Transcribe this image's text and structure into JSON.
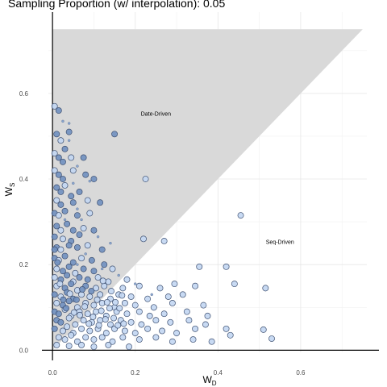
{
  "chart_data": {
    "type": "scatter",
    "title": "Sampling Proportion (w/ interpolation): 0.05",
    "xlabel": "W",
    "xlabel_sub": "D",
    "ylabel": "W",
    "ylabel_sub": "S",
    "xlim": [
      -0.01,
      0.76
    ],
    "ylim": [
      -0.005,
      0.79
    ],
    "xticks": [
      "0.0",
      "0.2",
      "0.4",
      "0.6"
    ],
    "yticks": [
      "0.0",
      "0.2",
      "0.4",
      "0.6"
    ],
    "grid": true,
    "region": {
      "label": "Date-Driven",
      "polygon": [
        [
          0,
          0
        ],
        [
          0,
          0.75
        ],
        [
          0.75,
          0.75
        ]
      ],
      "fill": "#d9d9d9"
    },
    "annotations": [
      {
        "text": "Date-Driven",
        "x": 0.25,
        "y": 0.548
      },
      {
        "text": "Seq-Driven",
        "x": 0.55,
        "y": 0.248
      }
    ],
    "point_fill_dark": "#6f8fbf",
    "point_fill_light": "#c2d6f2",
    "point_stroke": "#3f5172",
    "points": [
      [
        0.005,
        0.57
      ],
      [
        0.015,
        0.56
      ],
      [
        0.01,
        0.505
      ],
      [
        0.02,
        0.49
      ],
      [
        0.04,
        0.51
      ],
      [
        0.15,
        0.505
      ],
      [
        0.005,
        0.46
      ],
      [
        0.015,
        0.45
      ],
      [
        0.025,
        0.44
      ],
      [
        0.045,
        0.45
      ],
      [
        0.03,
        0.47
      ],
      [
        0.075,
        0.45
      ],
      [
        0.005,
        0.42
      ],
      [
        0.015,
        0.41
      ],
      [
        0.025,
        0.4
      ],
      [
        0.05,
        0.42
      ],
      [
        0.08,
        0.41
      ],
      [
        0.1,
        0.4
      ],
      [
        0.225,
        0.4
      ],
      [
        0.01,
        0.38
      ],
      [
        0.02,
        0.37
      ],
      [
        0.03,
        0.385
      ],
      [
        0.045,
        0.36
      ],
      [
        0.065,
        0.37
      ],
      [
        0.01,
        0.35
      ],
      [
        0.02,
        0.34
      ],
      [
        0.05,
        0.345
      ],
      [
        0.085,
        0.35
      ],
      [
        0.115,
        0.345
      ],
      [
        0.005,
        0.32
      ],
      [
        0.015,
        0.315
      ],
      [
        0.03,
        0.325
      ],
      [
        0.06,
        0.315
      ],
      [
        0.09,
        0.32
      ],
      [
        0.455,
        0.315
      ],
      [
        0.01,
        0.29
      ],
      [
        0.02,
        0.28
      ],
      [
        0.035,
        0.295
      ],
      [
        0.05,
        0.28
      ],
      [
        0.075,
        0.285
      ],
      [
        0.1,
        0.28
      ],
      [
        0.005,
        0.265
      ],
      [
        0.025,
        0.26
      ],
      [
        0.045,
        0.255
      ],
      [
        0.065,
        0.27
      ],
      [
        0.22,
        0.26
      ],
      [
        0.27,
        0.255
      ],
      [
        0.01,
        0.24
      ],
      [
        0.02,
        0.235
      ],
      [
        0.04,
        0.245
      ],
      [
        0.06,
        0.24
      ],
      [
        0.085,
        0.245
      ],
      [
        0.12,
        0.235
      ],
      [
        0.005,
        0.215
      ],
      [
        0.015,
        0.21
      ],
      [
        0.03,
        0.22
      ],
      [
        0.05,
        0.205
      ],
      [
        0.07,
        0.215
      ],
      [
        0.095,
        0.21
      ],
      [
        0.125,
        0.2
      ],
      [
        0.01,
        0.19
      ],
      [
        0.025,
        0.185
      ],
      [
        0.04,
        0.195
      ],
      [
        0.055,
        0.18
      ],
      [
        0.075,
        0.19
      ],
      [
        0.1,
        0.185
      ],
      [
        0.145,
        0.19
      ],
      [
        0.355,
        0.195
      ],
      [
        0.42,
        0.195
      ],
      [
        0.005,
        0.17
      ],
      [
        0.02,
        0.165
      ],
      [
        0.035,
        0.175
      ],
      [
        0.05,
        0.16
      ],
      [
        0.065,
        0.17
      ],
      [
        0.085,
        0.165
      ],
      [
        0.11,
        0.17
      ],
      [
        0.135,
        0.16
      ],
      [
        0.18,
        0.165
      ],
      [
        0.01,
        0.15
      ],
      [
        0.03,
        0.145
      ],
      [
        0.045,
        0.155
      ],
      [
        0.06,
        0.14
      ],
      [
        0.08,
        0.15
      ],
      [
        0.105,
        0.145
      ],
      [
        0.125,
        0.15
      ],
      [
        0.17,
        0.145
      ],
      [
        0.21,
        0.15
      ],
      [
        0.26,
        0.145
      ],
      [
        0.295,
        0.155
      ],
      [
        0.345,
        0.15
      ],
      [
        0.44,
        0.155
      ],
      [
        0.515,
        0.145
      ],
      [
        0.005,
        0.13
      ],
      [
        0.02,
        0.125
      ],
      [
        0.035,
        0.135
      ],
      [
        0.05,
        0.12
      ],
      [
        0.07,
        0.13
      ],
      [
        0.09,
        0.125
      ],
      [
        0.115,
        0.13
      ],
      [
        0.14,
        0.12
      ],
      [
        0.16,
        0.13
      ],
      [
        0.19,
        0.125
      ],
      [
        0.23,
        0.12
      ],
      [
        0.28,
        0.125
      ],
      [
        0.315,
        0.13
      ],
      [
        0.01,
        0.11
      ],
      [
        0.025,
        0.105
      ],
      [
        0.04,
        0.115
      ],
      [
        0.06,
        0.1
      ],
      [
        0.08,
        0.11
      ],
      [
        0.1,
        0.105
      ],
      [
        0.12,
        0.11
      ],
      [
        0.15,
        0.1
      ],
      [
        0.175,
        0.11
      ],
      [
        0.2,
        0.105
      ],
      [
        0.245,
        0.1
      ],
      [
        0.29,
        0.11
      ],
      [
        0.365,
        0.105
      ],
      [
        0.005,
        0.09
      ],
      [
        0.015,
        0.085
      ],
      [
        0.03,
        0.095
      ],
      [
        0.045,
        0.08
      ],
      [
        0.065,
        0.09
      ],
      [
        0.085,
        0.085
      ],
      [
        0.105,
        0.09
      ],
      [
        0.13,
        0.08
      ],
      [
        0.155,
        0.09
      ],
      [
        0.18,
        0.085
      ],
      [
        0.21,
        0.09
      ],
      [
        0.235,
        0.08
      ],
      [
        0.27,
        0.085
      ],
      [
        0.325,
        0.09
      ],
      [
        0.375,
        0.08
      ],
      [
        0.01,
        0.07
      ],
      [
        0.02,
        0.065
      ],
      [
        0.04,
        0.075
      ],
      [
        0.055,
        0.06
      ],
      [
        0.075,
        0.07
      ],
      [
        0.095,
        0.065
      ],
      [
        0.115,
        0.07
      ],
      [
        0.14,
        0.06
      ],
      [
        0.165,
        0.07
      ],
      [
        0.19,
        0.065
      ],
      [
        0.215,
        0.06
      ],
      [
        0.25,
        0.07
      ],
      [
        0.285,
        0.065
      ],
      [
        0.33,
        0.07
      ],
      [
        0.37,
        0.06
      ],
      [
        0.005,
        0.05
      ],
      [
        0.025,
        0.045
      ],
      [
        0.035,
        0.055
      ],
      [
        0.05,
        0.04
      ],
      [
        0.07,
        0.05
      ],
      [
        0.09,
        0.045
      ],
      [
        0.11,
        0.05
      ],
      [
        0.13,
        0.04
      ],
      [
        0.15,
        0.05
      ],
      [
        0.175,
        0.045
      ],
      [
        0.2,
        0.04
      ],
      [
        0.23,
        0.05
      ],
      [
        0.265,
        0.045
      ],
      [
        0.3,
        0.04
      ],
      [
        0.345,
        0.05
      ],
      [
        0.42,
        0.05
      ],
      [
        0.51,
        0.048
      ],
      [
        0.015,
        0.03
      ],
      [
        0.03,
        0.025
      ],
      [
        0.045,
        0.035
      ],
      [
        0.06,
        0.02
      ],
      [
        0.08,
        0.03
      ],
      [
        0.1,
        0.025
      ],
      [
        0.12,
        0.03
      ],
      [
        0.145,
        0.02
      ],
      [
        0.17,
        0.03
      ],
      [
        0.21,
        0.025
      ],
      [
        0.25,
        0.03
      ],
      [
        0.29,
        0.02
      ],
      [
        0.34,
        0.025
      ],
      [
        0.385,
        0.02
      ],
      [
        0.43,
        0.035
      ],
      [
        0.53,
        0.027
      ],
      [
        0.01,
        0.012
      ],
      [
        0.04,
        0.01
      ],
      [
        0.07,
        0.012
      ],
      [
        0.1,
        0.008
      ],
      [
        0.135,
        0.012
      ],
      [
        0.185,
        0.008
      ],
      [
        0.005,
        0.235
      ],
      [
        0.012,
        0.205
      ],
      [
        0.018,
        0.155
      ],
      [
        0.026,
        0.118
      ],
      [
        0.033,
        0.098
      ],
      [
        0.042,
        0.132
      ],
      [
        0.052,
        0.088
      ],
      [
        0.058,
        0.118
      ],
      [
        0.066,
        0.082
      ],
      [
        0.072,
        0.142
      ],
      [
        0.078,
        0.102
      ],
      [
        0.088,
        0.062
      ],
      [
        0.094,
        0.138
      ],
      [
        0.098,
        0.078
      ],
      [
        0.108,
        0.118
      ],
      [
        0.112,
        0.058
      ],
      [
        0.118,
        0.092
      ],
      [
        0.122,
        0.162
      ],
      [
        0.128,
        0.072
      ],
      [
        0.132,
        0.112
      ],
      [
        0.138,
        0.098
      ],
      [
        0.142,
        0.138
      ],
      [
        0.148,
        0.075
      ],
      [
        0.152,
        0.112
      ],
      [
        0.158,
        0.058
      ],
      [
        0.162,
        0.098
      ],
      [
        0.168,
        0.128
      ],
      [
        0.172,
        0.062
      ]
    ],
    "small_points": [
      [
        0.025,
        0.535
      ],
      [
        0.04,
        0.49
      ],
      [
        0.06,
        0.43
      ],
      [
        0.05,
        0.39
      ],
      [
        0.09,
        0.395
      ],
      [
        0.03,
        0.305
      ],
      [
        0.07,
        0.305
      ],
      [
        0.11,
        0.265
      ],
      [
        0.14,
        0.25
      ],
      [
        0.08,
        0.225
      ],
      [
        0.12,
        0.19
      ],
      [
        0.16,
        0.175
      ],
      [
        0.2,
        0.155
      ],
      [
        0.24,
        0.13
      ],
      [
        0.06,
        0.2
      ],
      [
        0.04,
        0.53
      ],
      [
        0.06,
        0.33
      ]
    ]
  }
}
